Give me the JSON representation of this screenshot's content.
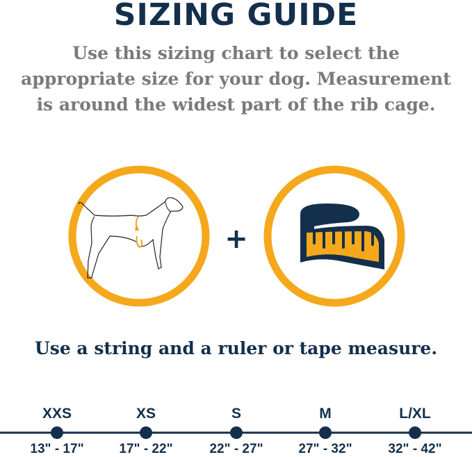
{
  "title": "SIZING GUIDE",
  "subtitle_lines": [
    "Use this sizing chart to select the",
    "appropriate size for your dog. Measurement",
    "is around the widest part of the rib cage."
  ],
  "plus": "+",
  "instruction": "Use a string and a ruler or tape measure.",
  "colors": {
    "navy": "#132f4c",
    "orange": "#f5a81c",
    "gray": "#7a7a7a"
  },
  "icons": [
    "dog-measurement-icon",
    "tape-measure-icon"
  ],
  "sizes": [
    {
      "label": "XXS",
      "range": "13\" - 17\""
    },
    {
      "label": "XS",
      "range": "17\" - 22\""
    },
    {
      "label": "S",
      "range": "22\" - 27\""
    },
    {
      "label": "M",
      "range": "27\" - 32\""
    },
    {
      "label": "L/XL",
      "range": "32\" - 42\""
    }
  ]
}
